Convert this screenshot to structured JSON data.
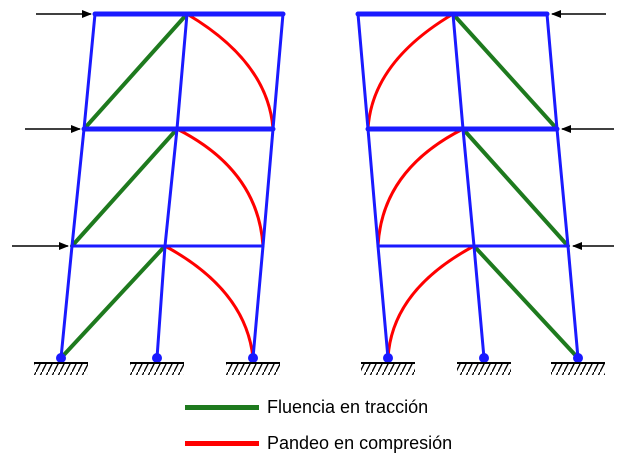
{
  "colors": {
    "frame": "#1a1aff",
    "tension": "#1e7a1e",
    "compression": "#ff0000",
    "arrow": "#000000",
    "support": "#000000",
    "background": "#ffffff"
  },
  "legend": [
    {
      "key": "tension",
      "label": "Fluencia en tracción",
      "color": "#1e7a1e"
    },
    {
      "key": "compression",
      "label": "Pandeo en compresión",
      "color": "#ff0000"
    }
  ],
  "frames": [
    {
      "name": "left-frame",
      "lateral_load_direction": "right",
      "stories": 3,
      "bays": 2
    },
    {
      "name": "right-frame",
      "lateral_load_direction": "left",
      "stories": 3,
      "bays": 2
    }
  ]
}
